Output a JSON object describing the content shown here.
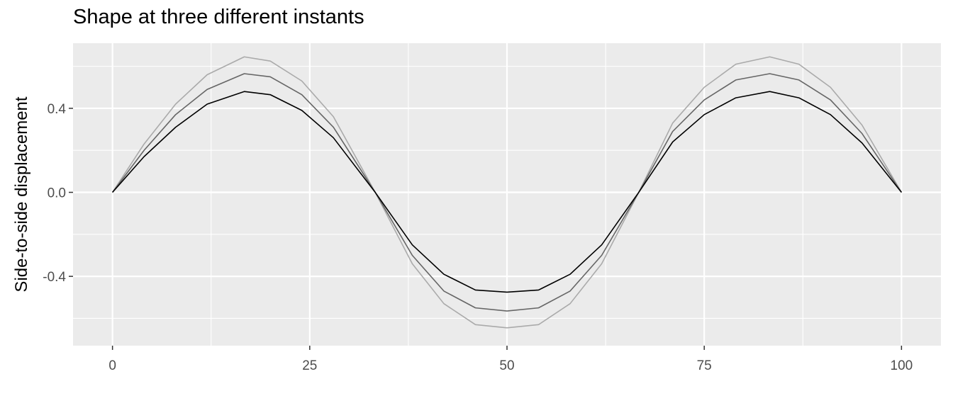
{
  "chart_data": {
    "type": "line",
    "title": "Shape at three different instants",
    "xlabel": "",
    "ylabel": "Side-to-side displacement",
    "xlim": [
      -5,
      105
    ],
    "ylim": [
      -0.73,
      0.71
    ],
    "x_ticks": [
      {
        "value": 0,
        "label": "0"
      },
      {
        "value": 25,
        "label": "25"
      },
      {
        "value": 50,
        "label": "50"
      },
      {
        "value": 75,
        "label": "75"
      },
      {
        "value": 100,
        "label": "100"
      }
    ],
    "y_ticks": [
      {
        "value": 0.4,
        "label": "0.4"
      },
      {
        "value": 0.0,
        "label": "0.0"
      },
      {
        "value": -0.4,
        "label": "-0.4"
      }
    ],
    "x_minor": [
      12.5,
      37.5,
      62.5,
      87.5
    ],
    "y_minor": [
      -0.6,
      -0.2,
      0.2,
      0.6
    ],
    "grid": true,
    "panel_background": "#ebebeb",
    "grid_color": "#ffffff",
    "series": [
      {
        "color": "#aaaaaa",
        "points": [
          [
            0,
            0.0
          ],
          [
            4,
            0.23
          ],
          [
            8,
            0.42
          ],
          [
            12,
            0.56
          ],
          [
            16.7,
            0.645
          ],
          [
            20,
            0.625
          ],
          [
            24,
            0.53
          ],
          [
            28,
            0.36
          ],
          [
            33.3,
            0.0
          ],
          [
            38,
            -0.34
          ],
          [
            42,
            -0.53
          ],
          [
            46,
            -0.63
          ],
          [
            50,
            -0.645
          ],
          [
            54,
            -0.63
          ],
          [
            58,
            -0.53
          ],
          [
            62,
            -0.34
          ],
          [
            66.7,
            0.0
          ],
          [
            71,
            0.33
          ],
          [
            75,
            0.5
          ],
          [
            79,
            0.61
          ],
          [
            83.3,
            0.645
          ],
          [
            87,
            0.61
          ],
          [
            91,
            0.5
          ],
          [
            95,
            0.32
          ],
          [
            100,
            0.0
          ]
        ]
      },
      {
        "color": "#666666",
        "points": [
          [
            0,
            0.0
          ],
          [
            4,
            0.2
          ],
          [
            8,
            0.37
          ],
          [
            12,
            0.49
          ],
          [
            16.7,
            0.565
          ],
          [
            20,
            0.55
          ],
          [
            24,
            0.465
          ],
          [
            28,
            0.31
          ],
          [
            33.3,
            0.0
          ],
          [
            38,
            -0.3
          ],
          [
            42,
            -0.47
          ],
          [
            46,
            -0.55
          ],
          [
            50,
            -0.565
          ],
          [
            54,
            -0.55
          ],
          [
            58,
            -0.47
          ],
          [
            62,
            -0.3
          ],
          [
            66.7,
            0.0
          ],
          [
            71,
            0.29
          ],
          [
            75,
            0.44
          ],
          [
            79,
            0.535
          ],
          [
            83.3,
            0.565
          ],
          [
            87,
            0.535
          ],
          [
            91,
            0.44
          ],
          [
            95,
            0.28
          ],
          [
            100,
            0.0
          ]
        ]
      },
      {
        "color": "#000000",
        "points": [
          [
            0,
            0.0
          ],
          [
            4,
            0.17
          ],
          [
            8,
            0.31
          ],
          [
            12,
            0.42
          ],
          [
            16.7,
            0.48
          ],
          [
            20,
            0.465
          ],
          [
            24,
            0.39
          ],
          [
            28,
            0.26
          ],
          [
            33.3,
            0.0
          ],
          [
            38,
            -0.25
          ],
          [
            42,
            -0.39
          ],
          [
            46,
            -0.465
          ],
          [
            50,
            -0.475
          ],
          [
            54,
            -0.465
          ],
          [
            58,
            -0.39
          ],
          [
            62,
            -0.25
          ],
          [
            66.7,
            0.0
          ],
          [
            71,
            0.24
          ],
          [
            75,
            0.37
          ],
          [
            79,
            0.45
          ],
          [
            83.3,
            0.48
          ],
          [
            87,
            0.45
          ],
          [
            91,
            0.37
          ],
          [
            95,
            0.235
          ],
          [
            100,
            0.0
          ]
        ]
      }
    ]
  }
}
